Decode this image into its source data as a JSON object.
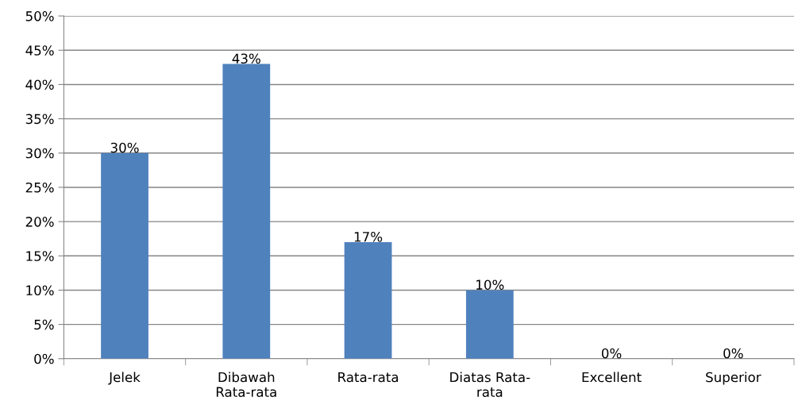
{
  "chart_data": {
    "type": "bar",
    "categories": [
      "Jelek",
      "Dibawah\nRata-rata",
      "Rata-rata",
      "Diatas Rata-\nrata",
      "Excellent",
      "Superior"
    ],
    "values": [
      30,
      43,
      17,
      10,
      0,
      0
    ],
    "value_labels": [
      "30%",
      "43%",
      "17%",
      "10%",
      "0%",
      "0%"
    ],
    "color": "#4f81bd",
    "ylim": [
      0,
      50
    ],
    "yticks": [
      {
        "value": 0,
        "label": "0%"
      },
      {
        "value": 5,
        "label": "5%"
      },
      {
        "value": 10,
        "label": "10%"
      },
      {
        "value": 15,
        "label": "15%"
      },
      {
        "value": 20,
        "label": "20%"
      },
      {
        "value": 25,
        "label": "25%"
      },
      {
        "value": 30,
        "label": "30%"
      },
      {
        "value": 35,
        "label": "35%"
      },
      {
        "value": 40,
        "label": "40%"
      },
      {
        "value": 45,
        "label": "45%"
      },
      {
        "value": 50,
        "label": "50%"
      }
    ],
    "grid": "y",
    "legend": false
  }
}
